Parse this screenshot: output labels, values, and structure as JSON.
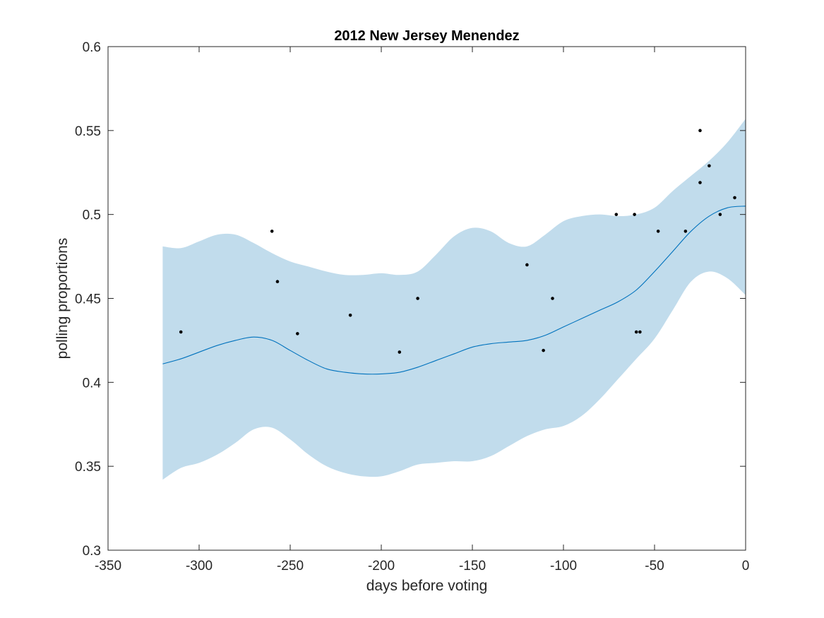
{
  "chart_data": {
    "type": "line",
    "title": "2012 New Jersey Menendez",
    "xlabel": "days before voting",
    "ylabel": "polling proportions",
    "xlim": [
      -350,
      0
    ],
    "ylim": [
      0.3,
      0.6
    ],
    "x_ticks": [
      -350,
      -300,
      -250,
      -200,
      -150,
      -100,
      -50,
      0
    ],
    "x_tick_labels": [
      "-350",
      "-300",
      "-250",
      "-200",
      "-150",
      "-100",
      "-50",
      "0"
    ],
    "y_ticks": [
      0.3,
      0.35,
      0.4,
      0.45,
      0.5,
      0.55,
      0.6
    ],
    "y_tick_labels": [
      "0.3",
      "0.35",
      "0.4",
      "0.45",
      "0.5",
      "0.55",
      "0.6"
    ],
    "grid": false,
    "colors": {
      "band": "#c1dcec",
      "line": "#0072bd",
      "points": "#000000",
      "axis": "#262626"
    },
    "band": {
      "x": [
        -320,
        -310,
        -300,
        -290,
        -280,
        -270,
        -260,
        -250,
        -240,
        -230,
        -220,
        -210,
        -200,
        -190,
        -180,
        -170,
        -160,
        -150,
        -140,
        -130,
        -120,
        -110,
        -100,
        -90,
        -80,
        -70,
        -60,
        -50,
        -40,
        -30,
        -20,
        -10,
        0
      ],
      "upper": [
        0.481,
        0.48,
        0.484,
        0.488,
        0.488,
        0.483,
        0.477,
        0.472,
        0.469,
        0.466,
        0.464,
        0.464,
        0.465,
        0.464,
        0.466,
        0.476,
        0.487,
        0.492,
        0.49,
        0.483,
        0.481,
        0.488,
        0.496,
        0.499,
        0.5,
        0.499,
        0.5,
        0.504,
        0.514,
        0.523,
        0.532,
        0.543,
        0.557
      ],
      "lower": [
        0.342,
        0.349,
        0.352,
        0.357,
        0.364,
        0.372,
        0.373,
        0.366,
        0.357,
        0.35,
        0.346,
        0.344,
        0.344,
        0.347,
        0.351,
        0.352,
        0.353,
        0.353,
        0.356,
        0.362,
        0.368,
        0.372,
        0.374,
        0.38,
        0.39,
        0.402,
        0.414,
        0.426,
        0.443,
        0.46,
        0.466,
        0.462,
        0.452
      ]
    },
    "series": [
      {
        "x": [
          -320,
          -310,
          -300,
          -290,
          -280,
          -270,
          -260,
          -250,
          -240,
          -230,
          -220,
          -210,
          -200,
          -190,
          -180,
          -170,
          -160,
          -150,
          -140,
          -130,
          -120,
          -110,
          -100,
          -90,
          -80,
          -70,
          -60,
          -50,
          -40,
          -30,
          -20,
          -10,
          0
        ],
        "values": [
          0.411,
          0.414,
          0.418,
          0.422,
          0.425,
          0.427,
          0.425,
          0.419,
          0.413,
          0.408,
          0.406,
          0.405,
          0.405,
          0.406,
          0.409,
          0.413,
          0.417,
          0.421,
          0.423,
          0.424,
          0.425,
          0.428,
          0.433,
          0.438,
          0.443,
          0.448,
          0.455,
          0.466,
          0.478,
          0.49,
          0.499,
          0.504,
          0.505
        ]
      }
    ],
    "points": [
      {
        "x": -310,
        "y": 0.43
      },
      {
        "x": -260,
        "y": 0.49
      },
      {
        "x": -257,
        "y": 0.46
      },
      {
        "x": -246,
        "y": 0.429
      },
      {
        "x": -217,
        "y": 0.44
      },
      {
        "x": -190,
        "y": 0.418
      },
      {
        "x": -180,
        "y": 0.45
      },
      {
        "x": -120,
        "y": 0.47
      },
      {
        "x": -111,
        "y": 0.419
      },
      {
        "x": -106,
        "y": 0.45
      },
      {
        "x": -71,
        "y": 0.5
      },
      {
        "x": -61,
        "y": 0.5
      },
      {
        "x": -60,
        "y": 0.43
      },
      {
        "x": -58,
        "y": 0.43
      },
      {
        "x": -48,
        "y": 0.49
      },
      {
        "x": -33,
        "y": 0.49
      },
      {
        "x": -25,
        "y": 0.55
      },
      {
        "x": -25,
        "y": 0.519
      },
      {
        "x": -20,
        "y": 0.529
      },
      {
        "x": -14,
        "y": 0.5
      },
      {
        "x": -6,
        "y": 0.51
      }
    ]
  }
}
